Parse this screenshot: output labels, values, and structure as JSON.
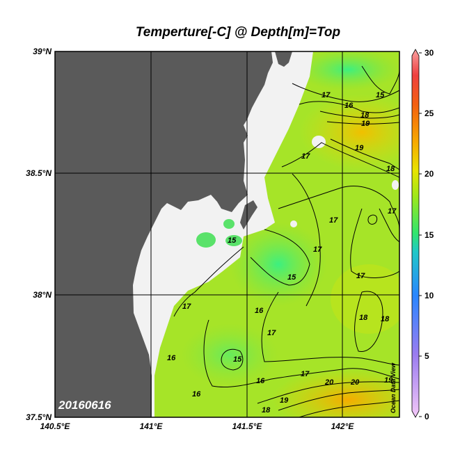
{
  "title": "Temperture[-C] @ Depth[m]=Top",
  "date_label": "20160616",
  "watermark": "Ocean Data View",
  "lat_labels": [
    "39°N",
    "38.5°N",
    "38°N",
    "37.5°N"
  ],
  "lon_labels": [
    "140.5°E",
    "141°E",
    "141.5°E",
    "142°E"
  ],
  "colorbar": {
    "min": 0,
    "max": 30,
    "tick_labels": [
      "30",
      "25",
      "20",
      "15",
      "10",
      "5",
      "0"
    ]
  },
  "colors": {
    "land": "#5a5a5a",
    "no_data": "#f2f2f2",
    "warm": "#f0b400",
    "mid": "#c8e600",
    "cool": "#3cf07a"
  },
  "contour_labels": [
    "15",
    "16",
    "17",
    "18",
    "19",
    "20"
  ]
}
